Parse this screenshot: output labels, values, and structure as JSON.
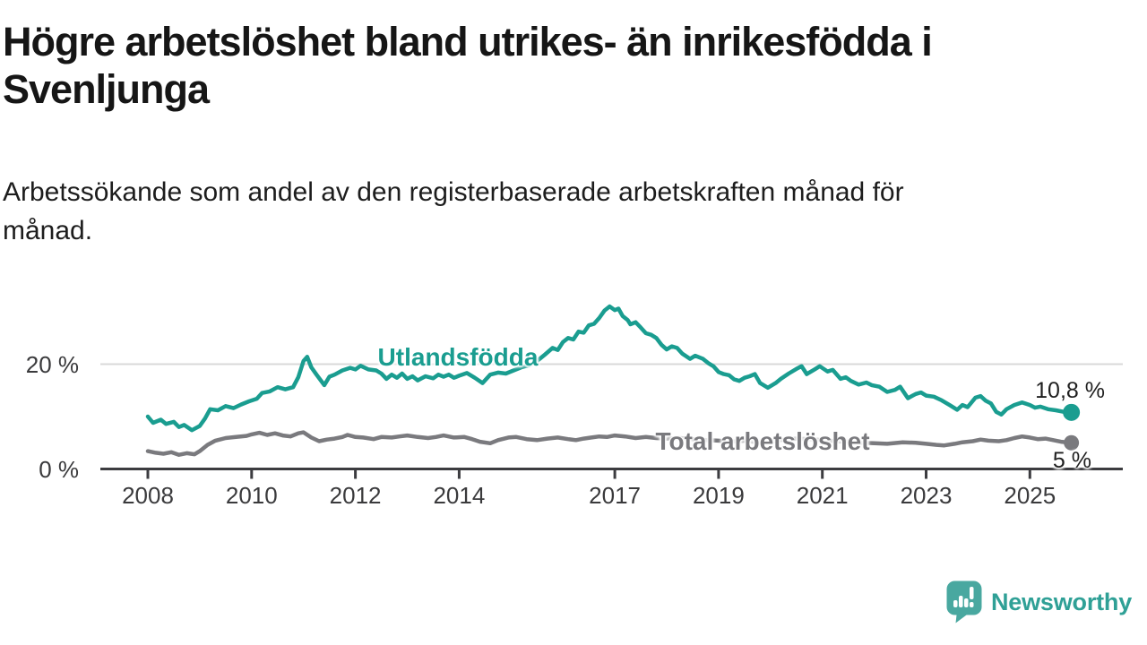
{
  "chart_data": {
    "type": "line",
    "title": "Högre arbetslöshet bland utrikes- än inrikesfödda i Svenljunga",
    "title_lines": [
      "Högre arbetslöshet bland utrikes- än inrikesfödda i",
      "Svenljunga"
    ],
    "subtitle": "Arbetssökande som andel av den registerbaserade arbetskraften månad för månad.",
    "subtitle_lines": [
      "Arbetssökande som andel av den registerbaserade arbetskraften månad för",
      "månad."
    ],
    "unit": "%",
    "xlim": [
      2008,
      2025.8
    ],
    "ylim": [
      0,
      33
    ],
    "x_ticks": [
      2008,
      2010,
      2012,
      2014,
      2017,
      2019,
      2021,
      2023,
      2025
    ],
    "y_ticks": [
      {
        "value": 20,
        "label": "20 %"
      },
      {
        "value": 0,
        "label": "0 %"
      }
    ],
    "grid": "single horizontal gridline at 20 %",
    "legend_position": "inline labels on lines",
    "axis_color": "#3c3c40",
    "grid_color": "#d8d8d8",
    "tick_label_color": "#3a3a3c",
    "series": [
      {
        "name": "Utlandsfödda",
        "color": "#1a9d90",
        "end_label": "10,8 %",
        "end_value": 10.8,
        "points": [
          [
            2008.0,
            10.0
          ],
          [
            2008.1,
            8.8
          ],
          [
            2008.25,
            9.4
          ],
          [
            2008.35,
            8.6
          ],
          [
            2008.5,
            9.0
          ],
          [
            2008.6,
            8.0
          ],
          [
            2008.7,
            8.4
          ],
          [
            2008.85,
            7.4
          ],
          [
            2009.0,
            8.2
          ],
          [
            2009.1,
            9.6
          ],
          [
            2009.2,
            11.4
          ],
          [
            2009.35,
            11.2
          ],
          [
            2009.5,
            12.0
          ],
          [
            2009.65,
            11.6
          ],
          [
            2009.8,
            12.3
          ],
          [
            2009.95,
            12.9
          ],
          [
            2010.1,
            13.4
          ],
          [
            2010.2,
            14.5
          ],
          [
            2010.35,
            14.8
          ],
          [
            2010.5,
            15.6
          ],
          [
            2010.65,
            15.2
          ],
          [
            2010.8,
            15.6
          ],
          [
            2010.9,
            17.5
          ],
          [
            2011.0,
            20.6
          ],
          [
            2011.07,
            21.4
          ],
          [
            2011.15,
            19.4
          ],
          [
            2011.25,
            18.0
          ],
          [
            2011.4,
            16.0
          ],
          [
            2011.5,
            17.6
          ],
          [
            2011.6,
            18.0
          ],
          [
            2011.75,
            18.8
          ],
          [
            2011.9,
            19.3
          ],
          [
            2012.0,
            19.0
          ],
          [
            2012.1,
            19.7
          ],
          [
            2012.25,
            19.0
          ],
          [
            2012.4,
            18.8
          ],
          [
            2012.5,
            18.2
          ],
          [
            2012.6,
            17.2
          ],
          [
            2012.7,
            18.0
          ],
          [
            2012.8,
            17.4
          ],
          [
            2012.9,
            18.2
          ],
          [
            2013.0,
            17.2
          ],
          [
            2013.1,
            17.7
          ],
          [
            2013.2,
            16.9
          ],
          [
            2013.35,
            17.7
          ],
          [
            2013.5,
            17.3
          ],
          [
            2013.6,
            18.0
          ],
          [
            2013.7,
            17.6
          ],
          [
            2013.8,
            18.0
          ],
          [
            2013.9,
            17.4
          ],
          [
            2014.0,
            17.8
          ],
          [
            2014.15,
            18.3
          ],
          [
            2014.3,
            17.4
          ],
          [
            2014.45,
            16.4
          ],
          [
            2014.6,
            18.0
          ],
          [
            2014.75,
            18.4
          ],
          [
            2014.9,
            18.2
          ],
          [
            2015.05,
            18.8
          ],
          [
            2015.2,
            19.4
          ],
          [
            2015.35,
            19.8
          ],
          [
            2015.5,
            20.6
          ],
          [
            2015.65,
            21.8
          ],
          [
            2015.8,
            23.1
          ],
          [
            2015.9,
            22.7
          ],
          [
            2016.0,
            24.2
          ],
          [
            2016.1,
            25.0
          ],
          [
            2016.2,
            24.7
          ],
          [
            2016.3,
            26.2
          ],
          [
            2016.4,
            26.0
          ],
          [
            2016.5,
            27.4
          ],
          [
            2016.6,
            27.7
          ],
          [
            2016.7,
            28.8
          ],
          [
            2016.8,
            30.2
          ],
          [
            2016.9,
            31.0
          ],
          [
            2017.0,
            30.3
          ],
          [
            2017.07,
            30.6
          ],
          [
            2017.15,
            29.2
          ],
          [
            2017.25,
            28.4
          ],
          [
            2017.3,
            27.6
          ],
          [
            2017.4,
            28.0
          ],
          [
            2017.5,
            27.0
          ],
          [
            2017.6,
            25.9
          ],
          [
            2017.7,
            25.6
          ],
          [
            2017.8,
            25.0
          ],
          [
            2017.9,
            23.7
          ],
          [
            2018.0,
            22.8
          ],
          [
            2018.1,
            23.4
          ],
          [
            2018.2,
            23.1
          ],
          [
            2018.3,
            22.0
          ],
          [
            2018.45,
            21.0
          ],
          [
            2018.55,
            21.6
          ],
          [
            2018.7,
            21.0
          ],
          [
            2018.8,
            20.2
          ],
          [
            2018.9,
            19.6
          ],
          [
            2019.0,
            18.5
          ],
          [
            2019.1,
            18.1
          ],
          [
            2019.2,
            17.9
          ],
          [
            2019.3,
            17.1
          ],
          [
            2019.4,
            16.8
          ],
          [
            2019.5,
            17.4
          ],
          [
            2019.6,
            17.7
          ],
          [
            2019.7,
            18.1
          ],
          [
            2019.8,
            16.4
          ],
          [
            2019.95,
            15.5
          ],
          [
            2020.1,
            16.4
          ],
          [
            2020.2,
            17.2
          ],
          [
            2020.35,
            18.2
          ],
          [
            2020.5,
            19.1
          ],
          [
            2020.6,
            19.6
          ],
          [
            2020.7,
            18.1
          ],
          [
            2020.85,
            19.0
          ],
          [
            2020.95,
            19.6
          ],
          [
            2021.1,
            18.6
          ],
          [
            2021.2,
            18.9
          ],
          [
            2021.35,
            17.2
          ],
          [
            2021.45,
            17.5
          ],
          [
            2021.55,
            16.8
          ],
          [
            2021.7,
            16.1
          ],
          [
            2021.85,
            16.5
          ],
          [
            2021.95,
            16.0
          ],
          [
            2022.1,
            15.7
          ],
          [
            2022.25,
            14.7
          ],
          [
            2022.4,
            15.1
          ],
          [
            2022.5,
            15.7
          ],
          [
            2022.65,
            13.5
          ],
          [
            2022.8,
            14.3
          ],
          [
            2022.9,
            14.6
          ],
          [
            2023.0,
            14.0
          ],
          [
            2023.15,
            13.8
          ],
          [
            2023.3,
            13.1
          ],
          [
            2023.45,
            12.2
          ],
          [
            2023.6,
            11.3
          ],
          [
            2023.7,
            12.2
          ],
          [
            2023.8,
            11.8
          ],
          [
            2023.95,
            13.6
          ],
          [
            2024.05,
            13.9
          ],
          [
            2024.15,
            13.0
          ],
          [
            2024.25,
            12.5
          ],
          [
            2024.35,
            10.9
          ],
          [
            2024.45,
            10.4
          ],
          [
            2024.55,
            11.4
          ],
          [
            2024.7,
            12.2
          ],
          [
            2024.85,
            12.7
          ],
          [
            2025.0,
            12.2
          ],
          [
            2025.1,
            11.7
          ],
          [
            2025.2,
            11.9
          ],
          [
            2025.35,
            11.4
          ],
          [
            2025.5,
            11.2
          ],
          [
            2025.65,
            10.9
          ],
          [
            2025.8,
            10.8
          ]
        ]
      },
      {
        "name": "Total arbetslöshet",
        "color": "#7a7a7e",
        "end_label": "5 %",
        "end_value": 5.0,
        "points": [
          [
            2008.0,
            3.4
          ],
          [
            2008.15,
            3.1
          ],
          [
            2008.3,
            2.9
          ],
          [
            2008.45,
            3.2
          ],
          [
            2008.6,
            2.7
          ],
          [
            2008.75,
            3.0
          ],
          [
            2008.9,
            2.8
          ],
          [
            2009.0,
            3.4
          ],
          [
            2009.15,
            4.6
          ],
          [
            2009.3,
            5.4
          ],
          [
            2009.5,
            5.9
          ],
          [
            2009.7,
            6.1
          ],
          [
            2009.9,
            6.3
          ],
          [
            2010.0,
            6.6
          ],
          [
            2010.15,
            6.9
          ],
          [
            2010.3,
            6.5
          ],
          [
            2010.45,
            6.8
          ],
          [
            2010.6,
            6.4
          ],
          [
            2010.75,
            6.2
          ],
          [
            2010.9,
            6.8
          ],
          [
            2011.0,
            7.0
          ],
          [
            2011.15,
            6.0
          ],
          [
            2011.3,
            5.3
          ],
          [
            2011.45,
            5.6
          ],
          [
            2011.6,
            5.8
          ],
          [
            2011.75,
            6.1
          ],
          [
            2011.85,
            6.5
          ],
          [
            2012.0,
            6.1
          ],
          [
            2012.15,
            6.0
          ],
          [
            2012.35,
            5.7
          ],
          [
            2012.5,
            6.1
          ],
          [
            2012.7,
            6.0
          ],
          [
            2012.85,
            6.2
          ],
          [
            2013.0,
            6.4
          ],
          [
            2013.2,
            6.1
          ],
          [
            2013.4,
            5.9
          ],
          [
            2013.55,
            6.1
          ],
          [
            2013.7,
            6.4
          ],
          [
            2013.9,
            6.0
          ],
          [
            2014.1,
            6.1
          ],
          [
            2014.25,
            5.7
          ],
          [
            2014.4,
            5.2
          ],
          [
            2014.6,
            4.9
          ],
          [
            2014.75,
            5.5
          ],
          [
            2014.95,
            6.0
          ],
          [
            2015.1,
            6.1
          ],
          [
            2015.3,
            5.7
          ],
          [
            2015.5,
            5.5
          ],
          [
            2015.7,
            5.8
          ],
          [
            2015.9,
            6.0
          ],
          [
            2016.1,
            5.7
          ],
          [
            2016.25,
            5.5
          ],
          [
            2016.4,
            5.8
          ],
          [
            2016.55,
            6.0
          ],
          [
            2016.7,
            6.2
          ],
          [
            2016.85,
            6.1
          ],
          [
            2017.0,
            6.4
          ],
          [
            2017.2,
            6.2
          ],
          [
            2017.4,
            5.9
          ],
          [
            2017.6,
            6.1
          ],
          [
            2017.8,
            5.9
          ],
          [
            2018.0,
            5.8
          ],
          [
            2018.25,
            5.9
          ],
          [
            2018.5,
            5.7
          ],
          [
            2018.75,
            5.5
          ],
          [
            2019.0,
            5.4
          ],
          [
            2019.25,
            5.2
          ],
          [
            2019.5,
            5.4
          ],
          [
            2019.75,
            5.1
          ],
          [
            2020.0,
            5.2
          ],
          [
            2020.25,
            5.6
          ],
          [
            2020.5,
            5.8
          ],
          [
            2020.75,
            5.7
          ],
          [
            2021.0,
            5.5
          ],
          [
            2021.25,
            5.3
          ],
          [
            2021.5,
            5.2
          ],
          [
            2021.75,
            5.0
          ],
          [
            2022.0,
            4.9
          ],
          [
            2022.25,
            4.8
          ],
          [
            2022.55,
            5.1
          ],
          [
            2022.8,
            5.0
          ],
          [
            2023.0,
            4.8
          ],
          [
            2023.2,
            4.6
          ],
          [
            2023.35,
            4.5
          ],
          [
            2023.55,
            4.8
          ],
          [
            2023.7,
            5.1
          ],
          [
            2023.9,
            5.3
          ],
          [
            2024.05,
            5.6
          ],
          [
            2024.2,
            5.4
          ],
          [
            2024.4,
            5.3
          ],
          [
            2024.55,
            5.5
          ],
          [
            2024.7,
            5.9
          ],
          [
            2024.85,
            6.2
          ],
          [
            2025.0,
            6.0
          ],
          [
            2025.15,
            5.7
          ],
          [
            2025.3,
            5.8
          ],
          [
            2025.45,
            5.5
          ],
          [
            2025.6,
            5.2
          ],
          [
            2025.8,
            5.0
          ]
        ]
      }
    ]
  },
  "footer": {
    "brand": "Newsworthy",
    "brand_text_color": "#2fa096",
    "brand_icon_color": "#49a8a0"
  }
}
